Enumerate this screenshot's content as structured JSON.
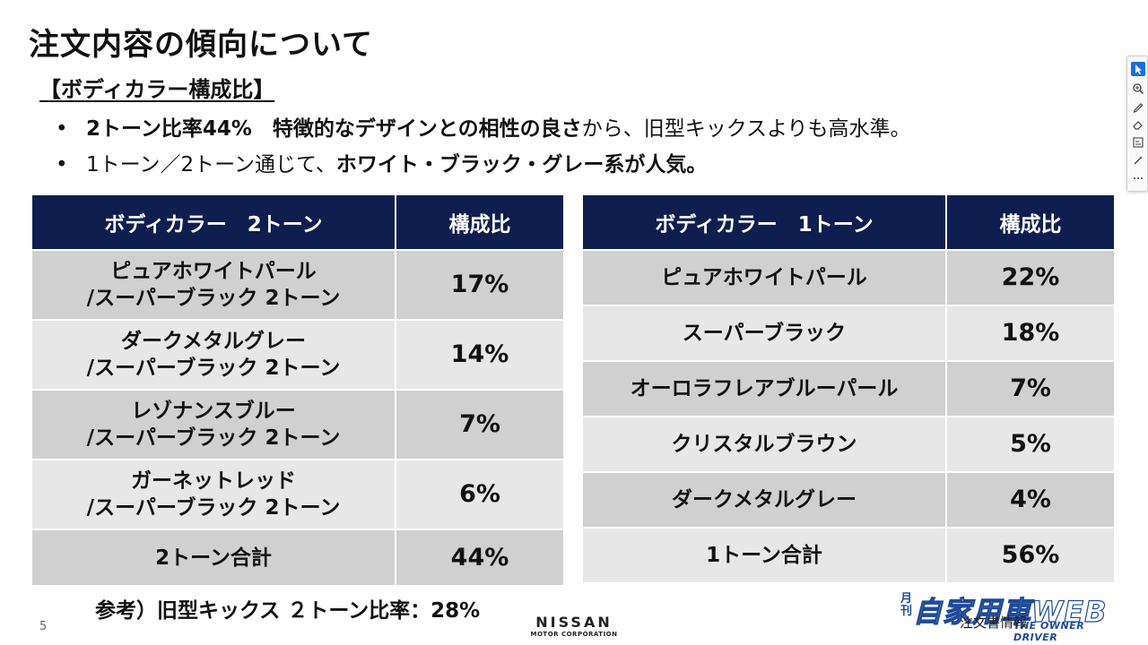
{
  "title": "注文内容の傾向について",
  "subtitle": "【ボディカラー構成比】",
  "bullets": [
    {
      "bold1": "2トーン比率44%　特徴的なデザインとの相性の良さ",
      "normal1": "から、旧型キックスよりも高水準。"
    },
    {
      "normal1": "1トーン／2トーン通じて、",
      "bold1": "ホワイト・ブラック・グレー系が人気。"
    }
  ],
  "table_two_tone": {
    "header_color": "ボディカラー　2トーン",
    "header_ratio": "構成比",
    "rows": [
      {
        "line1": "ピュアホワイトパール",
        "line2": "/スーパーブラック 2トーン",
        "ratio": "17%"
      },
      {
        "line1": "ダークメタルグレー",
        "line2": "/スーパーブラック 2トーン",
        "ratio": "14%"
      },
      {
        "line1": "レゾナンスブルー",
        "line2": "/スーパーブラック 2トーン",
        "ratio": "7%"
      },
      {
        "line1": "ガーネットレッド",
        "line2": "/スーパーブラック 2トーン",
        "ratio": "6%"
      }
    ],
    "total": {
      "label": "2トーン合計",
      "ratio": "44%"
    }
  },
  "table_one_tone": {
    "header_color": "ボディカラー　1トーン",
    "header_ratio": "構成比",
    "rows": [
      {
        "label": "ピュアホワイトパール",
        "ratio": "22%"
      },
      {
        "label": "スーパーブラック",
        "ratio": "18%"
      },
      {
        "label": "オーロラフレアブルーパール",
        "ratio": "7%"
      },
      {
        "label": "クリスタルブラウン",
        "ratio": "5%"
      },
      {
        "label": "ダークメタルグレー",
        "ratio": "4%"
      }
    ],
    "total": {
      "label": "1トーン合計",
      "ratio": "56%"
    }
  },
  "note": "参考）旧型キックス ２トーン比率：28%",
  "page_number": "5",
  "logo": {
    "brand": "NISSAN",
    "corp": "MOTOR CORPORATION"
  },
  "watermark": {
    "side": "月刊",
    "main": "自家用車WEB",
    "sub": "THE OWNER DRIVER",
    "overlay": "注文書情報"
  },
  "colors": {
    "header_bg": "#0e1f4f",
    "row_dark": "#d0d0d0",
    "row_light": "#e7e7e7",
    "watermark": "#1e4a9a"
  },
  "toolbar_icons": [
    "cursor-icon",
    "zoom-icon",
    "pen-icon",
    "eraser-icon",
    "subtitle-icon",
    "magic-icon",
    "more-icon"
  ]
}
